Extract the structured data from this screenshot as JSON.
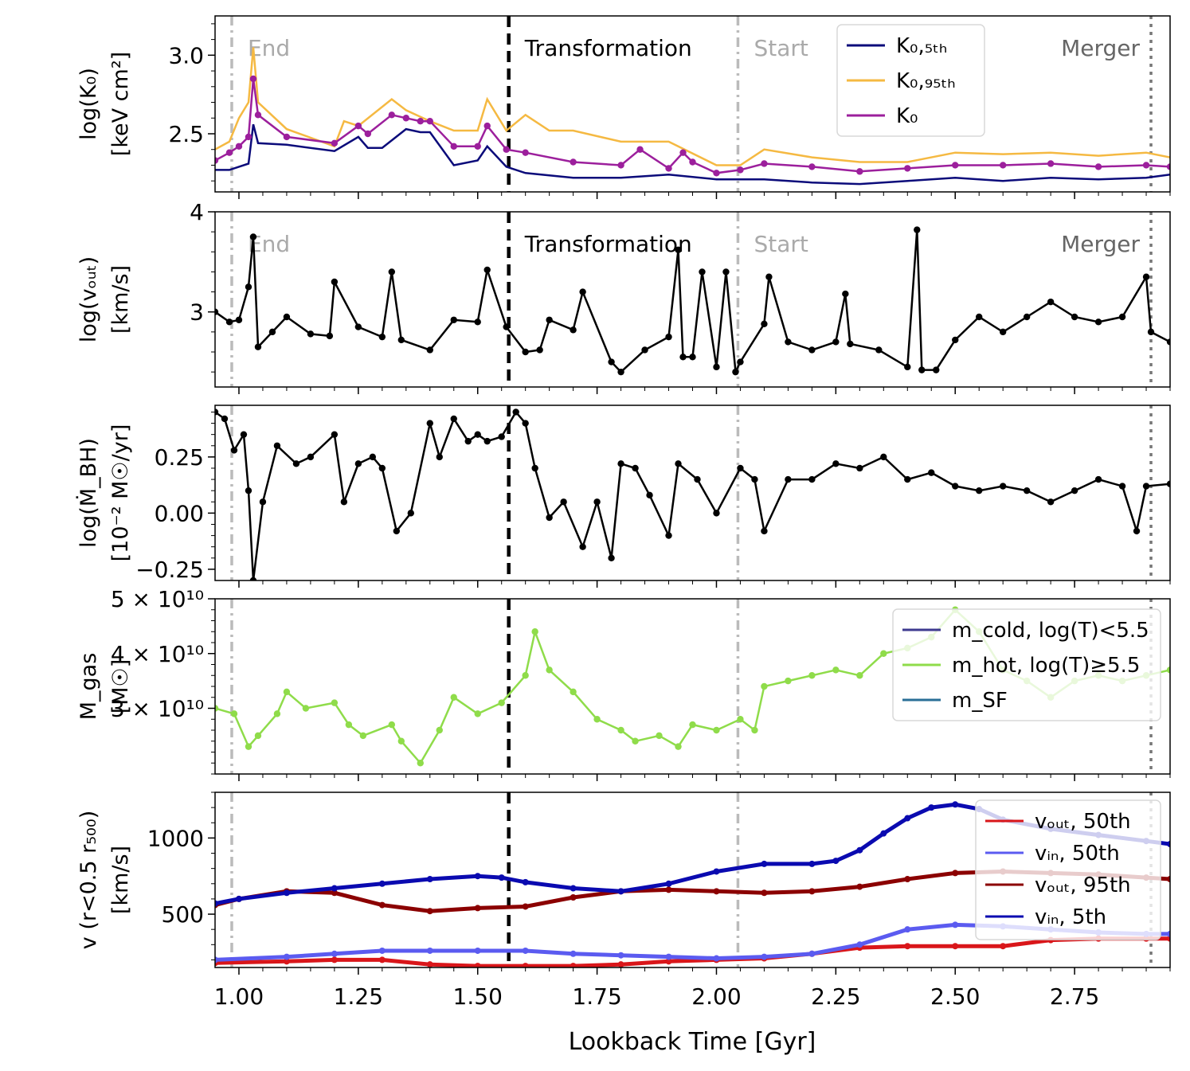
{
  "figure": {
    "xlabel": "Lookback Time [Gyr]"
  },
  "chart_data": [
    {
      "type": "line",
      "panel": "K0",
      "ylabel": [
        "log(K₀)",
        "[keV cm²]"
      ],
      "xlim": [
        0.95,
        2.95
      ],
      "ylim": [
        2.13,
        3.25
      ],
      "yticks": [
        2.5,
        3.0
      ],
      "yticklabels": [
        "2.5",
        "3.0"
      ],
      "xticks": [
        1.0,
        1.25,
        1.5,
        1.75,
        2.0,
        2.25,
        2.5,
        2.75
      ],
      "legend": "top-right",
      "series": [
        {
          "name": "K₀,₅ₜₕ",
          "color": "#0b0b7a",
          "markers": false,
          "x": [
            0.95,
            0.98,
            1.0,
            1.02,
            1.03,
            1.04,
            1.1,
            1.2,
            1.25,
            1.27,
            1.3,
            1.35,
            1.38,
            1.4,
            1.45,
            1.5,
            1.52,
            1.56,
            1.6,
            1.7,
            1.8,
            1.9,
            2.0,
            2.05,
            2.1,
            2.2,
            2.3,
            2.4,
            2.5,
            2.6,
            2.7,
            2.8,
            2.9,
            2.95
          ],
          "y": [
            2.27,
            2.27,
            2.29,
            2.31,
            2.56,
            2.44,
            2.43,
            2.39,
            2.48,
            2.41,
            2.41,
            2.53,
            2.51,
            2.51,
            2.3,
            2.33,
            2.42,
            2.29,
            2.25,
            2.22,
            2.22,
            2.24,
            2.21,
            2.21,
            2.21,
            2.19,
            2.18,
            2.2,
            2.22,
            2.2,
            2.22,
            2.21,
            2.22,
            2.24
          ]
        },
        {
          "name": "K₀,₉₅ₜₕ",
          "color": "#f5b942",
          "markers": false,
          "x": [
            0.95,
            0.98,
            1.0,
            1.02,
            1.03,
            1.04,
            1.1,
            1.2,
            1.22,
            1.25,
            1.32,
            1.35,
            1.4,
            1.45,
            1.5,
            1.52,
            1.56,
            1.6,
            1.65,
            1.7,
            1.8,
            1.9,
            2.0,
            2.05,
            2.1,
            2.2,
            2.3,
            2.4,
            2.5,
            2.6,
            2.7,
            2.8,
            2.9,
            2.95
          ],
          "y": [
            2.4,
            2.45,
            2.6,
            2.7,
            3.05,
            2.7,
            2.53,
            2.42,
            2.58,
            2.55,
            2.72,
            2.65,
            2.58,
            2.52,
            2.52,
            2.72,
            2.52,
            2.62,
            2.52,
            2.52,
            2.45,
            2.45,
            2.3,
            2.3,
            2.4,
            2.35,
            2.32,
            2.32,
            2.38,
            2.37,
            2.38,
            2.36,
            2.38,
            2.35
          ]
        },
        {
          "name": "K₀",
          "color": "#9c1f9c",
          "markers": true,
          "x": [
            0.95,
            0.98,
            1.0,
            1.02,
            1.03,
            1.04,
            1.1,
            1.2,
            1.25,
            1.27,
            1.32,
            1.35,
            1.38,
            1.4,
            1.45,
            1.5,
            1.52,
            1.56,
            1.6,
            1.7,
            1.8,
            1.84,
            1.9,
            1.93,
            1.95,
            2.0,
            2.05,
            2.1,
            2.2,
            2.3,
            2.4,
            2.5,
            2.6,
            2.7,
            2.8,
            2.9,
            2.95
          ],
          "y": [
            2.33,
            2.38,
            2.42,
            2.48,
            2.85,
            2.62,
            2.48,
            2.44,
            2.55,
            2.5,
            2.62,
            2.6,
            2.58,
            2.58,
            2.42,
            2.42,
            2.55,
            2.4,
            2.38,
            2.32,
            2.3,
            2.4,
            2.28,
            2.38,
            2.32,
            2.25,
            2.27,
            2.31,
            2.29,
            2.26,
            2.28,
            2.3,
            2.3,
            2.31,
            2.29,
            2.3,
            2.29
          ]
        }
      ]
    },
    {
      "type": "line",
      "panel": "vout",
      "ylabel": [
        "log(vₒᵤₜ)",
        "[km/s]"
      ],
      "xlim": [
        0.95,
        2.95
      ],
      "ylim": [
        2.25,
        4.0
      ],
      "yticks": [
        3,
        4
      ],
      "yticklabels": [
        "3",
        "4"
      ],
      "xticks": [
        1.0,
        1.25,
        1.5,
        1.75,
        2.0,
        2.25,
        2.5,
        2.75
      ],
      "series": [
        {
          "name": "",
          "color": "#000000",
          "markers": true,
          "x": [
            0.95,
            0.98,
            1.0,
            1.02,
            1.03,
            1.04,
            1.07,
            1.1,
            1.15,
            1.19,
            1.2,
            1.25,
            1.3,
            1.32,
            1.34,
            1.4,
            1.45,
            1.5,
            1.52,
            1.56,
            1.6,
            1.63,
            1.65,
            1.7,
            1.72,
            1.78,
            1.8,
            1.85,
            1.9,
            1.92,
            1.93,
            1.95,
            1.97,
            2.0,
            2.02,
            2.04,
            2.05,
            2.1,
            2.11,
            2.15,
            2.2,
            2.25,
            2.27,
            2.28,
            2.34,
            2.4,
            2.42,
            2.43,
            2.46,
            2.5,
            2.55,
            2.6,
            2.65,
            2.7,
            2.75,
            2.8,
            2.85,
            2.9,
            2.91,
            2.95
          ],
          "y": [
            3.0,
            2.9,
            2.92,
            3.25,
            3.75,
            2.65,
            2.8,
            2.95,
            2.78,
            2.76,
            3.3,
            2.85,
            2.75,
            3.4,
            2.72,
            2.62,
            2.92,
            2.9,
            3.42,
            2.85,
            2.6,
            2.62,
            2.92,
            2.82,
            3.2,
            2.5,
            2.4,
            2.62,
            2.75,
            3.62,
            2.55,
            2.55,
            3.4,
            2.45,
            3.4,
            2.4,
            2.5,
            2.88,
            3.35,
            2.7,
            2.62,
            2.7,
            3.18,
            2.68,
            2.62,
            2.45,
            3.82,
            2.42,
            2.42,
            2.72,
            2.95,
            2.8,
            2.95,
            3.1,
            2.95,
            2.9,
            2.95,
            3.35,
            2.8,
            2.7
          ]
        }
      ]
    },
    {
      "type": "line",
      "panel": "mdot",
      "ylabel": [
        "log(Ṁ_BH)",
        "[10⁻² M☉/yr]"
      ],
      "xlim": [
        0.95,
        2.95
      ],
      "ylim": [
        -0.3,
        0.48
      ],
      "yticks": [
        -0.25,
        0.0,
        0.25
      ],
      "yticklabels": [
        "−0.25",
        "0.00",
        "0.25"
      ],
      "xticks": [
        1.0,
        1.25,
        1.5,
        1.75,
        2.0,
        2.25,
        2.5,
        2.75
      ],
      "series": [
        {
          "name": "",
          "color": "#000000",
          "markers": true,
          "x": [
            0.95,
            0.97,
            0.99,
            1.01,
            1.02,
            1.03,
            1.05,
            1.08,
            1.12,
            1.15,
            1.2,
            1.22,
            1.25,
            1.28,
            1.3,
            1.33,
            1.36,
            1.4,
            1.42,
            1.45,
            1.48,
            1.5,
            1.52,
            1.55,
            1.58,
            1.6,
            1.62,
            1.65,
            1.68,
            1.72,
            1.75,
            1.78,
            1.8,
            1.83,
            1.86,
            1.9,
            1.92,
            1.96,
            2.0,
            2.05,
            2.08,
            2.1,
            2.15,
            2.2,
            2.25,
            2.3,
            2.35,
            2.4,
            2.45,
            2.5,
            2.55,
            2.6,
            2.65,
            2.7,
            2.75,
            2.8,
            2.85,
            2.88,
            2.9,
            2.95
          ],
          "y": [
            0.45,
            0.42,
            0.28,
            0.35,
            0.1,
            -0.3,
            0.05,
            0.3,
            0.22,
            0.25,
            0.35,
            0.05,
            0.22,
            0.25,
            0.2,
            -0.08,
            0.0,
            0.4,
            0.25,
            0.42,
            0.32,
            0.35,
            0.32,
            0.34,
            0.45,
            0.4,
            0.2,
            -0.02,
            0.05,
            -0.15,
            0.05,
            -0.2,
            0.22,
            0.2,
            0.08,
            -0.1,
            0.22,
            0.15,
            0.0,
            0.2,
            0.15,
            -0.08,
            0.15,
            0.15,
            0.22,
            0.2,
            0.25,
            0.15,
            0.18,
            0.12,
            0.1,
            0.12,
            0.1,
            0.05,
            0.1,
            0.15,
            0.12,
            -0.08,
            0.12,
            0.13
          ]
        }
      ]
    },
    {
      "type": "line",
      "panel": "mgas",
      "ylabel": [
        "M_gas",
        "[M☉]"
      ],
      "xlim": [
        0.95,
        2.95
      ],
      "ylim": [
        18000000000.0,
        50000000000.0
      ],
      "yticks": [
        30000000000.0,
        40000000000.0,
        50000000000.0
      ],
      "yticklabels": [
        "3 × 10¹⁰",
        "4 × 10¹⁰",
        "5 × 10¹⁰"
      ],
      "xticks": [
        1.0,
        1.25,
        1.5,
        1.75,
        2.0,
        2.25,
        2.5,
        2.75
      ],
      "legend": "top-right",
      "series": [
        {
          "name": "m_cold, log(T)<5.5",
          "color": "#3e3a8f",
          "markers": false,
          "x": [],
          "y": []
        },
        {
          "name": "m_hot, log(T)≥5.5",
          "color": "#8fdc4a",
          "markers": true,
          "x": [
            0.95,
            0.99,
            1.02,
            1.04,
            1.08,
            1.1,
            1.14,
            1.2,
            1.23,
            1.26,
            1.32,
            1.34,
            1.38,
            1.42,
            1.45,
            1.5,
            1.55,
            1.6,
            1.62,
            1.65,
            1.7,
            1.75,
            1.8,
            1.83,
            1.88,
            1.92,
            1.95,
            2.0,
            2.05,
            2.08,
            2.1,
            2.15,
            2.2,
            2.25,
            2.3,
            2.35,
            2.4,
            2.45,
            2.5,
            2.55,
            2.6,
            2.65,
            2.7,
            2.75,
            2.8,
            2.85,
            2.9,
            2.95
          ],
          "y": [
            30000000000.0,
            29000000000.0,
            23000000000.0,
            25000000000.0,
            29000000000.0,
            33000000000.0,
            30000000000.0,
            31000000000.0,
            27000000000.0,
            25000000000.0,
            27000000000.0,
            24000000000.0,
            20000000000.0,
            26000000000.0,
            32000000000.0,
            29000000000.0,
            31000000000.0,
            36000000000.0,
            44000000000.0,
            37000000000.0,
            33000000000.0,
            28000000000.0,
            26000000000.0,
            24000000000.0,
            25000000000.0,
            23000000000.0,
            27000000000.0,
            26000000000.0,
            28000000000.0,
            26000000000.0,
            34000000000.0,
            35000000000.0,
            36000000000.0,
            37000000000.0,
            36000000000.0,
            40000000000.0,
            41000000000.0,
            43000000000.0,
            48000000000.0,
            44000000000.0,
            37000000000.0,
            35000000000.0,
            32000000000.0,
            35000000000.0,
            36000000000.0,
            35000000000.0,
            36000000000.0,
            37000000000.0
          ]
        },
        {
          "name": "m_SF",
          "color": "#2a6f97",
          "markers": false,
          "x": [],
          "y": []
        }
      ]
    },
    {
      "type": "line",
      "panel": "velocity",
      "ylabel": [
        "v (r<0.5 r₅₀₀)",
        "[km/s]"
      ],
      "xlim": [
        0.95,
        2.95
      ],
      "ylim": [
        150,
        1300
      ],
      "yticks": [
        500,
        1000
      ],
      "yticklabels": [
        "500",
        "1000"
      ],
      "xticks": [
        1.0,
        1.25,
        1.5,
        1.75,
        2.0,
        2.25,
        2.5,
        2.75
      ],
      "xticklabels": [
        "1.00",
        "1.25",
        "1.50",
        "1.75",
        "2.00",
        "2.25",
        "2.50",
        "2.75"
      ],
      "legend": "right",
      "series": [
        {
          "name": "vₒᵤₜ, 50th",
          "color": "#d9161a",
          "markers": true,
          "x": [
            0.95,
            1.1,
            1.2,
            1.3,
            1.4,
            1.5,
            1.6,
            1.7,
            1.8,
            1.9,
            2.0,
            2.1,
            2.2,
            2.3,
            2.4,
            2.5,
            2.6,
            2.7,
            2.8,
            2.9,
            2.95
          ],
          "y": [
            180,
            190,
            200,
            200,
            170,
            160,
            160,
            160,
            170,
            190,
            200,
            210,
            240,
            280,
            290,
            290,
            290,
            330,
            340,
            340,
            340
          ]
        },
        {
          "name": "vᵢₙ, 50th",
          "color": "#5b5bf0",
          "markers": true,
          "x": [
            0.95,
            1.1,
            1.2,
            1.3,
            1.4,
            1.5,
            1.6,
            1.7,
            1.8,
            1.9,
            2.0,
            2.1,
            2.2,
            2.3,
            2.4,
            2.5,
            2.6,
            2.7,
            2.8,
            2.9,
            2.95
          ],
          "y": [
            200,
            220,
            240,
            260,
            260,
            260,
            260,
            240,
            230,
            220,
            210,
            220,
            240,
            300,
            400,
            430,
            420,
            400,
            380,
            370,
            370
          ]
        },
        {
          "name": "vₒᵤₜ, 95th",
          "color": "#8b0000",
          "markers": true,
          "x": [
            0.95,
            1.0,
            1.1,
            1.2,
            1.3,
            1.4,
            1.5,
            1.6,
            1.7,
            1.8,
            1.9,
            2.0,
            2.1,
            2.2,
            2.3,
            2.4,
            2.5,
            2.6,
            2.7,
            2.8,
            2.9,
            2.95
          ],
          "y": [
            560,
            600,
            650,
            640,
            560,
            520,
            540,
            550,
            610,
            650,
            660,
            650,
            640,
            650,
            680,
            730,
            770,
            780,
            770,
            760,
            740,
            730
          ]
        },
        {
          "name": "vᵢₙ, 5th",
          "color": "#0a0ab0",
          "markers": true,
          "x": [
            0.95,
            1.0,
            1.1,
            1.2,
            1.3,
            1.4,
            1.5,
            1.55,
            1.6,
            1.7,
            1.8,
            1.9,
            2.0,
            2.1,
            2.2,
            2.25,
            2.3,
            2.35,
            2.4,
            2.45,
            2.5,
            2.55,
            2.6,
            2.7,
            2.8,
            2.9,
            2.95
          ],
          "y": [
            570,
            600,
            640,
            670,
            700,
            730,
            750,
            740,
            710,
            670,
            650,
            700,
            780,
            830,
            830,
            850,
            920,
            1030,
            1130,
            1200,
            1220,
            1190,
            1120,
            1060,
            1020,
            980,
            960
          ]
        }
      ]
    }
  ],
  "events": [
    {
      "label": "End",
      "x": 0.985,
      "style": "dashdot",
      "color": "#bbbbbb",
      "text_color": "#aaaaaa"
    },
    {
      "label": "Transformation",
      "x": 1.565,
      "style": "dashed",
      "color": "#000000",
      "text_color": "#000000"
    },
    {
      "label": "Start",
      "x": 2.045,
      "style": "dashdot",
      "color": "#bbbbbb",
      "text_color": "#aaaaaa"
    },
    {
      "label": "Merger",
      "x": 2.91,
      "style": "dotted",
      "color": "#777777",
      "text_color": "#666666"
    }
  ]
}
